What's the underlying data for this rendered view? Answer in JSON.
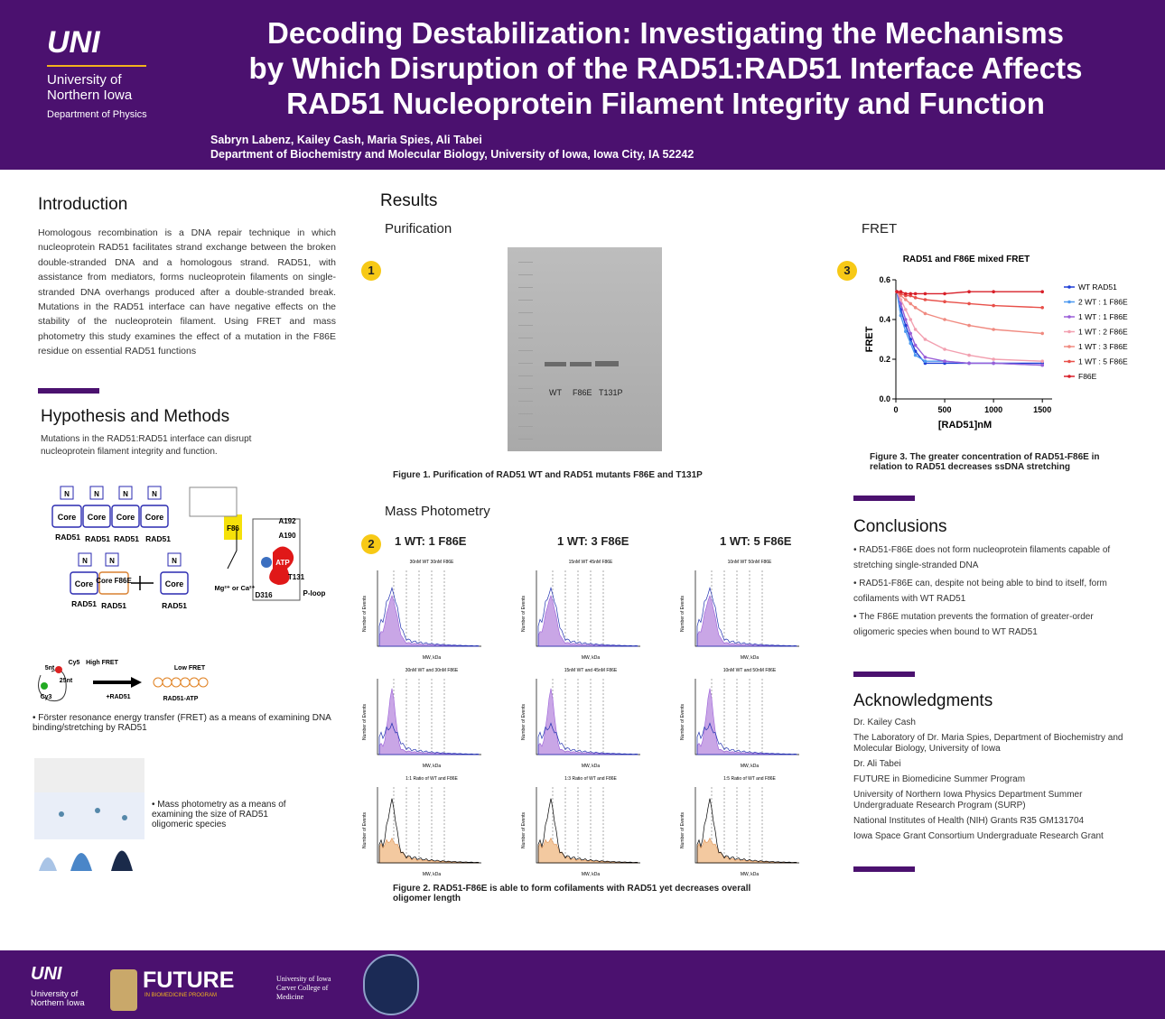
{
  "header": {
    "logo": "UNI",
    "university": "University of Northern Iowa",
    "department": "Department of Physics",
    "title": [
      "Decoding Destabilization: Investigating the Mechanisms",
      "by Which Disruption of the RAD51:RAD51 Interface Affects",
      "RAD51 Nucleoprotein Filament Integrity and Function"
    ],
    "authors": "Sabryn Labenz, Kailey Cash, Maria Spies, Ali Tabei",
    "affiliation": "Department of Biochemistry and Molecular Biology, University of Iowa, Iowa City, IA 52242"
  },
  "introduction": {
    "heading": "Introduction",
    "text": "Homologous recombination is a DNA repair technique in which nucleoprotein RAD51 facilitates strand exchange between the broken double-stranded DNA and a homologous strand. RAD51, with assistance from mediators, forms nucleoprotein filaments on single-stranded DNA overhangs produced after a double-stranded break. Mutations in the RAD51 interface can have negative effects on the stability of the nucleoprotein filament. Using FRET and mass photometry this study examines the effect of a mutation in the F86E residue on essential RAD51 functions"
  },
  "hypothesis": {
    "heading": "Hypothesis and Methods",
    "text": "Mutations in the RAD51:RAD51 interface can disrupt nucleoprotein filament integrity and function.",
    "fret_note": "Förster resonance energy transfer (FRET) as a means of examining DNA binding/stretching by RAD51",
    "mp_note": "Mass photometry as a means of examining the size of RAD51 oligomeric species"
  },
  "diagram": {
    "n": "N",
    "core": "Core",
    "rad51": "RAD51",
    "core_f86e": "Core F86E",
    "f86": "F86",
    "a192": "A192",
    "a190": "A190",
    "t131": "T131",
    "ploop": "P-loop",
    "d316": "D316",
    "metal": "Mg²⁺ or Ca²⁺",
    "atp": "ATP",
    "nt5": "5nt",
    "cy5": "Cy5",
    "high_fret": "High FRET",
    "nt25": "25nt",
    "cy3": "Cy3",
    "plus_rad51": "+RAD51",
    "low_fret": "Low FRET",
    "rad51_atp": "RAD51-ATP"
  },
  "results": {
    "heading": "Results",
    "badges": [
      "1",
      "2",
      "3"
    ],
    "purification": {
      "heading": "Purification",
      "lanes": [
        "WT",
        "F86E",
        "T131P"
      ],
      "caption": "Figure 1. Purification of RAD51 WT and RAD51 mutants F86E and T131P"
    },
    "mass_photometry": {
      "heading": "Mass Photometry",
      "columns": [
        "1 WT: 1 F86E",
        "1 WT: 3 F86E",
        "1 WT: 5 F86E"
      ],
      "panels": [
        "30nM WT 30nM F86E",
        "15nM WT 45nM F86E",
        "10nM WT 50nM F86E",
        "30nM WT and 30nM F86E",
        "15nM WT and 45nM F86E",
        "10nM WT and 50nM F86E",
        "1:1 Ratio of WT and F86E",
        "1:3 Ratio of WT and F86E",
        "1:5 Ratio of WT and F86E"
      ],
      "y_label": "Number of Events",
      "x_label": "MW, kDa",
      "caption": "Figure 2. RAD51-F86E is able to form cofilaments with RAD51 yet decreases overall oligomer length"
    }
  },
  "fret": {
    "heading": "FRET",
    "caption": "Figure 3. The greater concentration of RAD51-F86E in relation to RAD51 decreases ssDNA stretching",
    "chart_data": {
      "type": "line",
      "title": "RAD51 and F86E mixed FRET",
      "x_label": "[RAD51]nM",
      "y_label": "FRET",
      "x": [
        10,
        50,
        100,
        150,
        200,
        300,
        500,
        750,
        1000,
        1500
      ],
      "xlim": [
        0,
        1600
      ],
      "ylim": [
        0,
        0.6
      ],
      "xticks": [
        0,
        500,
        1000,
        1500
      ],
      "yticks": [
        {
          "value": 0,
          "label": "0.0"
        },
        0.2,
        0.4,
        0.6
      ],
      "legend": "right",
      "series": [
        {
          "name": "WT RAD51",
          "color": "#1f3fd6",
          "values": [
            0.54,
            0.45,
            0.37,
            0.3,
            0.24,
            0.18,
            0.18,
            0.18,
            0.18,
            0.18
          ]
        },
        {
          "name": "2 WT : 1 F86E",
          "color": "#4f9af0",
          "values": [
            0.54,
            0.42,
            0.34,
            0.28,
            0.22,
            0.19,
            0.19,
            0.18,
            0.18,
            0.17
          ]
        },
        {
          "name": "1 WT : 1 F86E",
          "color": "#9a5fd8",
          "values": [
            0.54,
            0.48,
            0.4,
            0.33,
            0.27,
            0.21,
            0.19,
            0.18,
            0.18,
            0.17
          ]
        },
        {
          "name": "1 WT : 2 F86E",
          "color": "#f2a0b0",
          "values": [
            0.54,
            0.5,
            0.45,
            0.4,
            0.35,
            0.3,
            0.25,
            0.22,
            0.2,
            0.19
          ]
        },
        {
          "name": "1 WT : 3 F86E",
          "color": "#f08a80",
          "values": [
            0.54,
            0.52,
            0.5,
            0.48,
            0.46,
            0.43,
            0.4,
            0.37,
            0.35,
            0.33
          ]
        },
        {
          "name": "1 WT : 5 F86E",
          "color": "#e8504a",
          "values": [
            0.54,
            0.53,
            0.52,
            0.52,
            0.51,
            0.5,
            0.49,
            0.48,
            0.47,
            0.46
          ]
        },
        {
          "name": "F86E",
          "color": "#d8202a",
          "values": [
            0.54,
            0.54,
            0.53,
            0.53,
            0.53,
            0.53,
            0.53,
            0.54,
            0.54,
            0.54
          ]
        }
      ]
    }
  },
  "conclusions": {
    "heading": "Conclusions",
    "items": [
      "RAD51-F86E does not form nucleoprotein filaments capable of stretching single-stranded DNA",
      "RAD51-F86E can, despite not being able to bind to itself, form cofilaments with WT RAD51",
      "The F86E mutation prevents the formation of greater-order oligomeric species when bound to WT RAD51"
    ]
  },
  "acknowledgments": {
    "heading": "Acknowledgments",
    "items": [
      "Dr. Kailey Cash",
      "The Laboratory of Dr. Maria Spies, Department of Biochemistry and Molecular Biology, University of Iowa",
      "Dr. Ali Tabei",
      "FUTURE in Biomedicine Summer Program",
      "University of Northern Iowa Physics Department Summer Undergraduate Research Program (SURP)",
      "National Institutes of Health (NIH) Grants R35 GM131704",
      "Iowa Space Grant Consortium Undergraduate Research Grant"
    ]
  },
  "footer": {
    "logo": "UNI",
    "university": "University of Northern Iowa",
    "future": "FUTURE",
    "future_sub": "IN BIOMEDICINE PROGRAM",
    "carver": "University of Iowa Carver College of Medicine"
  }
}
